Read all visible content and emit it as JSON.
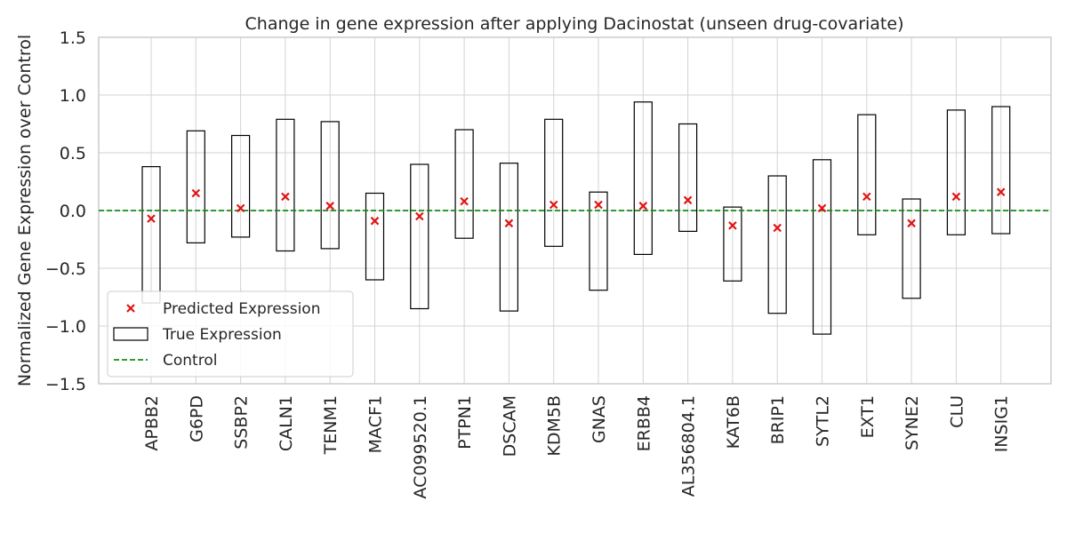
{
  "chart_data": {
    "type": "box-range",
    "title": "Change in gene expression after applying Dacinostat (unseen drug-covariate)",
    "xlabel": "",
    "ylabel": "Normalized Gene Expression over Control",
    "ylim": [
      -1.5,
      1.5
    ],
    "yticks": [
      -1.5,
      -1.0,
      -0.5,
      0.0,
      0.5,
      1.0,
      1.5
    ],
    "ytick_labels": [
      "−1.5",
      "−1.0",
      "−0.5",
      "0.0",
      "0.5",
      "1.0",
      "1.5"
    ],
    "grid": true,
    "legend_position": "lower-left",
    "categories": [
      "APBB2",
      "G6PD",
      "SSBP2",
      "CALN1",
      "TENM1",
      "MACF1",
      "AC099520.1",
      "PTPN1",
      "DSCAM",
      "KDM5B",
      "GNAS",
      "ERBB4",
      "AL356804.1",
      "KAT6B",
      "BRIP1",
      "SYTL2",
      "EXT1",
      "SYNE2",
      "CLU",
      "INSIG1"
    ],
    "true_low": [
      -0.8,
      -0.28,
      -0.23,
      -0.35,
      -0.33,
      -0.6,
      -0.85,
      -0.24,
      -0.87,
      -0.31,
      -0.69,
      -0.38,
      -0.18,
      -0.61,
      -0.89,
      -1.07,
      -0.21,
      -0.76,
      -0.21,
      -0.2
    ],
    "true_high": [
      0.38,
      0.69,
      0.65,
      0.79,
      0.77,
      0.15,
      0.4,
      0.7,
      0.41,
      0.79,
      0.16,
      0.94,
      0.75,
      0.03,
      0.3,
      0.44,
      0.83,
      0.1,
      0.87,
      0.9
    ],
    "predicted": [
      -0.07,
      0.15,
      0.02,
      0.12,
      0.04,
      -0.09,
      -0.05,
      0.08,
      -0.11,
      0.05,
      0.05,
      0.04,
      0.09,
      -0.13,
      -0.15,
      0.02,
      0.12,
      -0.11,
      0.12,
      0.16
    ],
    "control_value": 0.0,
    "legend": [
      {
        "label": "Predicted Expression",
        "marker": "x"
      },
      {
        "label": "True Expression",
        "marker": "box"
      },
      {
        "label": "Control",
        "marker": "dashed-line"
      }
    ],
    "colors": {
      "predicted": "#e01515",
      "box_edge": "#000000",
      "control": "#1a8a1a",
      "grid": "#d3d3d3",
      "axes_edge": "#cccccc"
    }
  }
}
